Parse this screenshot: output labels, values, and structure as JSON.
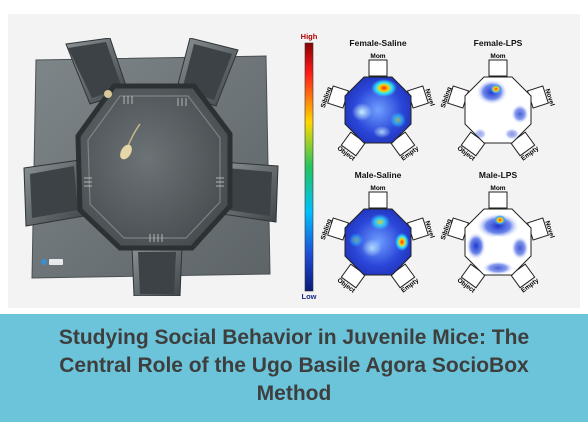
{
  "figure": {
    "colorbar": {
      "high": "High",
      "low": "Low"
    },
    "panels": [
      {
        "title": "Female-Saline",
        "scheme": "saline"
      },
      {
        "title": "Female-LPS",
        "scheme": "lps"
      },
      {
        "title": "Male-Saline",
        "scheme": "saline"
      },
      {
        "title": "Male-LPS",
        "scheme": "lps"
      }
    ],
    "chamber_labels": {
      "top": "Mom",
      "left": "Sibling",
      "right": "Novel",
      "bottom_left": "Object",
      "bottom_right": "Empty"
    }
  },
  "banner": {
    "title_lines": [
      "Studying Social Behavior in Juvenile Mice: The",
      "Central Role of the Ugo Basile Agora SocioBox",
      "Method"
    ],
    "background": "#6bc4d9",
    "text_color": "#3e3e3e"
  }
}
